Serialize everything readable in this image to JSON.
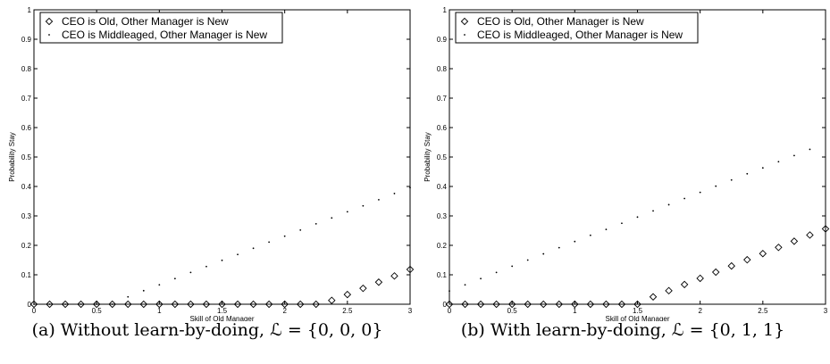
{
  "chart_data": [
    {
      "type": "scatter",
      "caption": "(a) Without learn-by-doing, ℒ = {0, 0, 0}",
      "xlabel": "Skill of Old Manager",
      "ylabel": "Probability Stay",
      "xlim": [
        0,
        3
      ],
      "ylim": [
        0,
        1
      ],
      "xticks": [
        "0",
        "0.5",
        "1",
        "1.5",
        "2",
        "2.5",
        "3"
      ],
      "yticks": [
        "0",
        "0.1",
        "0.2",
        "0.3",
        "0.4",
        "0.5",
        "0.6",
        "0.7",
        "0.8",
        "0.9",
        "1"
      ],
      "legend_position": "top-left",
      "series": [
        {
          "name": "CEO is Old, Other Manager is New",
          "marker": "diamond",
          "x": [
            0,
            0.125,
            0.25,
            0.375,
            0.5,
            0.625,
            0.75,
            0.875,
            1.0,
            1.125,
            1.25,
            1.375,
            1.5,
            1.625,
            1.75,
            1.875,
            2.0,
            2.125,
            2.25,
            2.375,
            2.5,
            2.625,
            2.75,
            2.875,
            3.0
          ],
          "y": [
            0,
            0,
            0,
            0,
            0,
            0,
            0,
            0,
            0,
            0,
            0,
            0,
            0,
            0,
            0,
            0,
            0,
            0,
            0,
            0.013,
            0.033,
            0.054,
            0.075,
            0.096,
            0.118
          ]
        },
        {
          "name": "CEO is Middleaged, Other Manager is New",
          "marker": "dot",
          "x": [
            0,
            0.125,
            0.25,
            0.375,
            0.5,
            0.625,
            0.75,
            0.875,
            1.0,
            1.125,
            1.25,
            1.375,
            1.5,
            1.625,
            1.75,
            1.875,
            2.0,
            2.125,
            2.25,
            2.375,
            2.5,
            2.625,
            2.75,
            2.875,
            3.0
          ],
          "y": [
            0,
            0,
            0,
            0,
            0,
            0,
            0.025,
            0.046,
            0.066,
            0.087,
            0.108,
            0.128,
            0.149,
            0.169,
            0.19,
            0.211,
            0.231,
            0.252,
            0.273,
            0.293,
            0.314,
            0.334,
            0.355,
            0.376,
            0.396
          ]
        }
      ]
    },
    {
      "type": "scatter",
      "caption": "(b) With learn-by-doing, ℒ = {0, 1, 1}",
      "xlabel": "Skill of Old Manager",
      "ylabel": "Probability Stay",
      "xlim": [
        0,
        3
      ],
      "ylim": [
        0,
        1
      ],
      "xticks": [
        "0",
        "0.5",
        "1",
        "1.5",
        "2",
        "2.5",
        "3"
      ],
      "yticks": [
        "0",
        "0.1",
        "0.2",
        "0.3",
        "0.4",
        "0.5",
        "0.6",
        "0.7",
        "0.8",
        "0.9",
        "1"
      ],
      "legend_position": "top-left",
      "series": [
        {
          "name": "CEO is Old, Other Manager is New",
          "marker": "diamond",
          "x": [
            0,
            0.125,
            0.25,
            0.375,
            0.5,
            0.625,
            0.75,
            0.875,
            1.0,
            1.125,
            1.25,
            1.375,
            1.5,
            1.625,
            1.75,
            1.875,
            2.0,
            2.125,
            2.25,
            2.375,
            2.5,
            2.625,
            2.75,
            2.875,
            3.0
          ],
          "y": [
            0,
            0,
            0,
            0,
            0,
            0,
            0,
            0,
            0,
            0,
            0,
            0,
            0,
            0.025,
            0.046,
            0.067,
            0.088,
            0.109,
            0.13,
            0.151,
            0.172,
            0.193,
            0.214,
            0.235,
            0.256
          ]
        },
        {
          "name": "CEO is Middleaged, Other Manager is New",
          "marker": "dot",
          "x": [
            0,
            0.125,
            0.25,
            0.375,
            0.5,
            0.625,
            0.75,
            0.875,
            1.0,
            1.125,
            1.25,
            1.375,
            1.5,
            1.625,
            1.75,
            1.875,
            2.0,
            2.125,
            2.25,
            2.375,
            2.5,
            2.625,
            2.75,
            2.875
          ],
          "y": [
            0.045,
            0.066,
            0.087,
            0.108,
            0.129,
            0.15,
            0.171,
            0.192,
            0.213,
            0.234,
            0.254,
            0.275,
            0.296,
            0.317,
            0.338,
            0.359,
            0.38,
            0.401,
            0.422,
            0.443,
            0.463,
            0.484,
            0.505,
            0.526
          ]
        }
      ]
    }
  ]
}
